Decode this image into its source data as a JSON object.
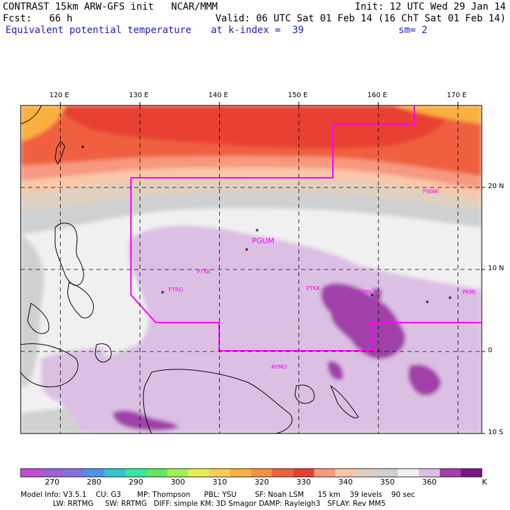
{
  "header": {
    "title": "CONTRAST 15km ARW-GFS init   NCAR/MMM",
    "fcst": "Fcst:   66 h",
    "field": "Equivalent potential temperature",
    "init": "Init: 12 UTC Wed 29 Jan 14",
    "valid": "Valid: 06 UTC Sat 01 Feb 14 (16 ChT Sat 01 Feb 14)",
    "level": "at k-index =  39",
    "smooth": "sm= 2"
  },
  "map": {
    "lon_range": [
      115,
      173
    ],
    "lat_range": [
      -10,
      30
    ],
    "lon_ticks": [
      {
        "value": 120,
        "label": "120 E"
      },
      {
        "value": 130,
        "label": "130 E"
      },
      {
        "value": 140,
        "label": "140 E"
      },
      {
        "value": 150,
        "label": "150 E"
      },
      {
        "value": 160,
        "label": "160 E"
      },
      {
        "value": 170,
        "label": "170 E"
      }
    ],
    "lat_ticks": [
      {
        "value": 20,
        "label": "20 N"
      },
      {
        "value": 10,
        "label": "10 N"
      },
      {
        "value": 0,
        "label": "0"
      },
      {
        "value": -10,
        "label": "10 S"
      }
    ],
    "grid": "dashed",
    "stations": [
      {
        "id": "PGUM",
        "lon": 145.5,
        "lat": 13.2
      },
      {
        "id": "PTYA",
        "lon": 138.0,
        "lat": 9.5
      },
      {
        "id": "PTRO",
        "lon": 134.5,
        "lat": 7.3
      },
      {
        "id": "PTKK",
        "lon": 151.8,
        "lat": 7.5
      },
      {
        "id": "PTPN",
        "lon": 158.2,
        "lat": 7.0
      },
      {
        "id": "PKMJ",
        "lon": 171.4,
        "lat": 7.0
      },
      {
        "id": "PWAK",
        "lon": 166.6,
        "lat": 19.3
      },
      {
        "id": "AYMO",
        "lon": 147.5,
        "lat": -2.1
      }
    ],
    "boundary_color": "#ff00ff"
  },
  "colorbar": {
    "unit": "K",
    "colors": [
      "#c050d0",
      "#a060d8",
      "#8070e0",
      "#5090e8",
      "#30c8c8",
      "#30e8a0",
      "#60e860",
      "#a0f050",
      "#e8f050",
      "#f8d050",
      "#f8b040",
      "#f89040",
      "#f06040",
      "#e84030",
      "#f89880",
      "#f8c8a8",
      "#e0d0c0",
      "#d0d0d0",
      "#f0f0f0",
      "#dcc0e4",
      "#a040a8",
      "#781880"
    ],
    "labels": [
      {
        "text": "270",
        "index": 1
      },
      {
        "text": "280",
        "index": 3
      },
      {
        "text": "290",
        "index": 5
      },
      {
        "text": "300",
        "index": 7
      },
      {
        "text": "310",
        "index": 9
      },
      {
        "text": "320",
        "index": 11
      },
      {
        "text": "330",
        "index": 13
      },
      {
        "text": "340",
        "index": 15
      },
      {
        "text": "350",
        "index": 17
      },
      {
        "text": "360",
        "index": 19
      }
    ]
  },
  "footer": {
    "line1": "Model Info: V3.5.1    CU: G3       MP: Thompson      PBL: YSU        SF: Noah LSM      15 km    39 levels    90 sec",
    "line2": "              LW: RRTMG     SW: RRTMG   DIFF: simple KM: 3D Smagor DAMP: Rayleigh3   SFLAY: Rev MM5"
  }
}
